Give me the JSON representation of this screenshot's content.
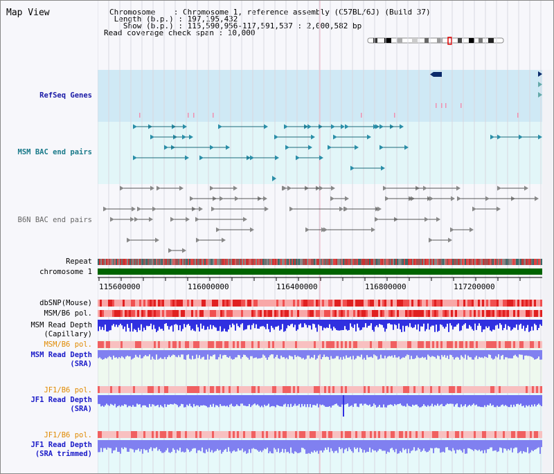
{
  "title": "Map View",
  "header": {
    "chromosome_line": "Chromosome    : Chromosome 1, reference assembly (C57BL/6J) (Build 37)",
    "length_line": " Length (b.p.) : 197,195,432",
    "show_line": "   Show (b.p.) : 115,590,956-117,591,537 : 2,000,582 bp",
    "coverage_line": "Read coverage check span : 10,000"
  },
  "tracks": {
    "refseq": "RefSeq Genes",
    "msm_bac": "MSM BAC end pairs",
    "b6n_bac": "B6N BAC end pairs",
    "repeat": "Repeat",
    "chromosome": "chromosome 1",
    "dbsnp": "dbSNP(Mouse)",
    "msm_b6_pol_1": "MSM/B6 pol.",
    "msm_read_depth_cap_1": "MSM Read Depth",
    "msm_read_depth_cap_2": "(Capillary)",
    "msm_b6_pol_2": "MSM/B6 pol.",
    "msm_read_depth_sra_1": "MSM Read Depth",
    "msm_read_depth_sra_2": "(SRA)",
    "jf1_b6_pol_1": "JF1/B6 pol.",
    "jf1_read_depth_1": "JF1 Read Depth",
    "jf1_read_depth_2": "(SRA)",
    "jf1_b6_pol_2": "JF1/B6 pol.",
    "jf1_read_depth_trim_1": "JF1 Read Depth",
    "jf1_read_depth_trim_2": "(SRA trimmed)"
  },
  "ruler": {
    "ticks": [
      "115600000",
      "116000000",
      "116400000",
      "116800000",
      "117200000"
    ]
  },
  "colors": {
    "refseq_label": "#1a1aa6",
    "msm_label": "#1a7a8a",
    "b6n_label": "#666666",
    "orange_label": "#e08a00",
    "blue_label": "#1a1ac8",
    "refseq_band": "#cce8f4",
    "msm_band": "#e0f6f8",
    "chromosome_bar": "#006400"
  }
}
